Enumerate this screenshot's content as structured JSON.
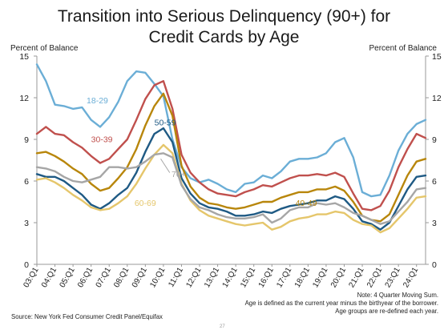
{
  "title_line1": "Transition into Serious Delinquency (90+) for",
  "title_line2": "Credit Cards by Age",
  "ylabel_left": "Percent of Balance",
  "ylabel_right": "Percent of Balance",
  "notes": [
    "Note: 4 Quarter Moving Sum.",
    "Age is defined as the current year minus the birthyear of the borrower.",
    "Age groups are re-defined each year."
  ],
  "source": "Source: New York Fed Consumer Credit Panel/Equifax",
  "page_number": "27",
  "chart_data": {
    "type": "line",
    "title": "Transition into Serious Delinquency (90+) for Credit Cards by Age",
    "ylabel": "Percent of Balance",
    "ylim": [
      0,
      15
    ],
    "yticks": [
      0,
      3,
      6,
      9,
      12,
      15
    ],
    "grid": false,
    "x_start": "03:Q1",
    "x_end": "24:Q2",
    "x_tick_labels": [
      "03:Q1",
      "04:Q1",
      "05:Q1",
      "06:Q1",
      "07:Q1",
      "08:Q1",
      "09:Q1",
      "10:Q1",
      "11:Q1",
      "12:Q1",
      "13:Q1",
      "14:Q1",
      "15:Q1",
      "16:Q1",
      "17:Q1",
      "18:Q1",
      "19:Q1",
      "20:Q1",
      "21:Q1",
      "22:Q1",
      "23:Q1",
      "24:Q1"
    ],
    "series": [
      {
        "name": "18-29",
        "color": "#6baed6",
        "label_pos": [
          2005.75,
          11.6
        ],
        "points": [
          [
            2003.0,
            14.4
          ],
          [
            2003.5,
            13.2
          ],
          [
            2004.0,
            11.5
          ],
          [
            2004.5,
            11.4
          ],
          [
            2005.0,
            11.2
          ],
          [
            2005.5,
            11.3
          ],
          [
            2006.0,
            10.4
          ],
          [
            2006.5,
            9.9
          ],
          [
            2007.0,
            10.6
          ],
          [
            2007.5,
            11.7
          ],
          [
            2008.0,
            13.2
          ],
          [
            2008.5,
            13.9
          ],
          [
            2009.0,
            13.8
          ],
          [
            2009.5,
            13.0
          ],
          [
            2010.0,
            12.1
          ],
          [
            2010.5,
            9.0
          ],
          [
            2011.0,
            7.0
          ],
          [
            2011.5,
            6.2
          ],
          [
            2012.0,
            5.9
          ],
          [
            2012.5,
            6.1
          ],
          [
            2013.0,
            5.8
          ],
          [
            2013.5,
            5.4
          ],
          [
            2014.0,
            5.2
          ],
          [
            2014.5,
            5.8
          ],
          [
            2015.0,
            5.9
          ],
          [
            2015.5,
            6.4
          ],
          [
            2016.0,
            6.2
          ],
          [
            2016.5,
            6.7
          ],
          [
            2017.0,
            7.4
          ],
          [
            2017.5,
            7.6
          ],
          [
            2018.0,
            7.6
          ],
          [
            2018.5,
            7.7
          ],
          [
            2019.0,
            8.0
          ],
          [
            2019.5,
            8.8
          ],
          [
            2020.0,
            9.1
          ],
          [
            2020.5,
            7.7
          ],
          [
            2021.0,
            5.2
          ],
          [
            2021.5,
            4.9
          ],
          [
            2022.0,
            5.0
          ],
          [
            2022.5,
            6.4
          ],
          [
            2023.0,
            8.2
          ],
          [
            2023.5,
            9.4
          ],
          [
            2024.0,
            10.1
          ],
          [
            2024.5,
            10.4
          ]
        ]
      },
      {
        "name": "30-39",
        "color": "#c0504d",
        "label_pos": [
          2006.0,
          8.8
        ],
        "points": [
          [
            2003.0,
            9.4
          ],
          [
            2003.5,
            9.9
          ],
          [
            2004.0,
            9.4
          ],
          [
            2004.5,
            9.3
          ],
          [
            2005.0,
            8.8
          ],
          [
            2005.5,
            8.4
          ],
          [
            2006.0,
            7.8
          ],
          [
            2006.5,
            7.3
          ],
          [
            2007.0,
            7.6
          ],
          [
            2007.5,
            8.3
          ],
          [
            2008.0,
            9.0
          ],
          [
            2008.5,
            10.4
          ],
          [
            2009.0,
            11.9
          ],
          [
            2009.5,
            12.9
          ],
          [
            2010.0,
            13.2
          ],
          [
            2010.5,
            11.2
          ],
          [
            2011.0,
            7.9
          ],
          [
            2011.5,
            6.6
          ],
          [
            2012.0,
            5.9
          ],
          [
            2012.5,
            5.4
          ],
          [
            2013.0,
            5.1
          ],
          [
            2013.5,
            5.0
          ],
          [
            2014.0,
            4.9
          ],
          [
            2014.5,
            5.2
          ],
          [
            2015.0,
            5.4
          ],
          [
            2015.5,
            5.7
          ],
          [
            2016.0,
            5.6
          ],
          [
            2016.5,
            5.9
          ],
          [
            2017.0,
            6.2
          ],
          [
            2017.5,
            6.4
          ],
          [
            2018.0,
            6.4
          ],
          [
            2018.5,
            6.5
          ],
          [
            2019.0,
            6.4
          ],
          [
            2019.5,
            6.6
          ],
          [
            2020.0,
            6.3
          ],
          [
            2020.5,
            5.1
          ],
          [
            2021.0,
            4.0
          ],
          [
            2021.5,
            3.9
          ],
          [
            2022.0,
            4.2
          ],
          [
            2022.5,
            5.3
          ],
          [
            2023.0,
            7.0
          ],
          [
            2023.5,
            8.3
          ],
          [
            2024.0,
            9.4
          ],
          [
            2024.5,
            9.1
          ]
        ]
      },
      {
        "name": "40-49",
        "color": "#b8860b",
        "label_pos": [
          2017.3,
          4.2
        ],
        "points": [
          [
            2003.0,
            8.0
          ],
          [
            2003.5,
            8.1
          ],
          [
            2004.0,
            7.8
          ],
          [
            2004.5,
            7.4
          ],
          [
            2005.0,
            6.9
          ],
          [
            2005.5,
            6.5
          ],
          [
            2006.0,
            5.8
          ],
          [
            2006.5,
            5.3
          ],
          [
            2007.0,
            5.5
          ],
          [
            2007.5,
            6.2
          ],
          [
            2008.0,
            7.0
          ],
          [
            2008.5,
            8.3
          ],
          [
            2009.0,
            10.0
          ],
          [
            2009.5,
            11.4
          ],
          [
            2010.0,
            12.3
          ],
          [
            2010.5,
            10.7
          ],
          [
            2011.0,
            7.1
          ],
          [
            2011.5,
            5.6
          ],
          [
            2012.0,
            4.8
          ],
          [
            2012.5,
            4.4
          ],
          [
            2013.0,
            4.3
          ],
          [
            2013.5,
            4.1
          ],
          [
            2014.0,
            4.0
          ],
          [
            2014.5,
            4.1
          ],
          [
            2015.0,
            4.3
          ],
          [
            2015.5,
            4.5
          ],
          [
            2016.0,
            4.5
          ],
          [
            2016.5,
            4.8
          ],
          [
            2017.0,
            5.0
          ],
          [
            2017.5,
            5.2
          ],
          [
            2018.0,
            5.2
          ],
          [
            2018.5,
            5.4
          ],
          [
            2019.0,
            5.4
          ],
          [
            2019.5,
            5.6
          ],
          [
            2020.0,
            5.3
          ],
          [
            2020.5,
            4.5
          ],
          [
            2021.0,
            3.5
          ],
          [
            2021.5,
            3.2
          ],
          [
            2022.0,
            3.1
          ],
          [
            2022.5,
            3.6
          ],
          [
            2023.0,
            5.0
          ],
          [
            2023.5,
            6.4
          ],
          [
            2024.0,
            7.4
          ],
          [
            2024.5,
            7.6
          ]
        ]
      },
      {
        "name": "50-59",
        "color": "#1f5a84",
        "label_pos": [
          2009.5,
          10.0
        ],
        "points": [
          [
            2003.0,
            6.5
          ],
          [
            2003.5,
            6.3
          ],
          [
            2004.0,
            6.3
          ],
          [
            2004.5,
            6.0
          ],
          [
            2005.0,
            5.5
          ],
          [
            2005.5,
            5.0
          ],
          [
            2006.0,
            4.3
          ],
          [
            2006.5,
            4.0
          ],
          [
            2007.0,
            4.4
          ],
          [
            2007.5,
            5.0
          ],
          [
            2008.0,
            5.5
          ],
          [
            2008.5,
            6.6
          ],
          [
            2009.0,
            8.1
          ],
          [
            2009.5,
            9.4
          ],
          [
            2010.0,
            9.8
          ],
          [
            2010.5,
            8.8
          ],
          [
            2011.0,
            6.2
          ],
          [
            2011.5,
            5.1
          ],
          [
            2012.0,
            4.4
          ],
          [
            2012.5,
            4.1
          ],
          [
            2013.0,
            4.0
          ],
          [
            2013.5,
            3.8
          ],
          [
            2014.0,
            3.5
          ],
          [
            2014.5,
            3.5
          ],
          [
            2015.0,
            3.6
          ],
          [
            2015.5,
            3.8
          ],
          [
            2016.0,
            3.7
          ],
          [
            2016.5,
            4.0
          ],
          [
            2017.0,
            4.2
          ],
          [
            2017.5,
            4.3
          ],
          [
            2018.0,
            4.4
          ],
          [
            2018.5,
            4.6
          ],
          [
            2019.0,
            4.6
          ],
          [
            2019.5,
            4.9
          ],
          [
            2020.0,
            4.7
          ],
          [
            2020.5,
            4.0
          ],
          [
            2021.0,
            3.1
          ],
          [
            2021.5,
            2.9
          ],
          [
            2022.0,
            2.5
          ],
          [
            2022.5,
            3.0
          ],
          [
            2023.0,
            4.2
          ],
          [
            2023.5,
            5.4
          ],
          [
            2024.0,
            6.3
          ],
          [
            2024.5,
            6.4
          ]
        ]
      },
      {
        "name": "60-69",
        "color": "#e5c66b",
        "label_pos": [
          2008.4,
          4.2
        ],
        "points": [
          [
            2003.0,
            6.1
          ],
          [
            2003.5,
            6.2
          ],
          [
            2004.0,
            5.9
          ],
          [
            2004.5,
            5.5
          ],
          [
            2005.0,
            5.0
          ],
          [
            2005.5,
            4.6
          ],
          [
            2006.0,
            4.1
          ],
          [
            2006.5,
            3.9
          ],
          [
            2007.0,
            4.0
          ],
          [
            2007.5,
            4.4
          ],
          [
            2008.0,
            4.9
          ],
          [
            2008.5,
            5.8
          ],
          [
            2009.0,
            6.9
          ],
          [
            2009.5,
            7.9
          ],
          [
            2010.0,
            8.6
          ],
          [
            2010.5,
            8.0
          ],
          [
            2011.0,
            5.8
          ],
          [
            2011.5,
            4.6
          ],
          [
            2012.0,
            3.9
          ],
          [
            2012.5,
            3.5
          ],
          [
            2013.0,
            3.3
          ],
          [
            2013.5,
            3.1
          ],
          [
            2014.0,
            2.9
          ],
          [
            2014.5,
            2.8
          ],
          [
            2015.0,
            2.9
          ],
          [
            2015.5,
            3.0
          ],
          [
            2016.0,
            2.5
          ],
          [
            2016.5,
            2.7
          ],
          [
            2017.0,
            3.1
          ],
          [
            2017.5,
            3.3
          ],
          [
            2018.0,
            3.4
          ],
          [
            2018.5,
            3.6
          ],
          [
            2019.0,
            3.6
          ],
          [
            2019.5,
            3.8
          ],
          [
            2020.0,
            3.7
          ],
          [
            2020.5,
            3.2
          ],
          [
            2021.0,
            2.9
          ],
          [
            2021.5,
            2.8
          ],
          [
            2022.0,
            2.3
          ],
          [
            2022.5,
            2.6
          ],
          [
            2023.0,
            3.3
          ],
          [
            2023.5,
            4.0
          ],
          [
            2024.0,
            4.8
          ],
          [
            2024.5,
            4.9
          ]
        ]
      },
      {
        "name": "70+",
        "color": "#a6a6a6",
        "label_pos": [
          2010.45,
          6.3
        ],
        "points": [
          [
            2003.0,
            7.0
          ],
          [
            2003.5,
            6.9
          ],
          [
            2004.0,
            6.7
          ],
          [
            2004.5,
            6.3
          ],
          [
            2005.0,
            6.0
          ],
          [
            2005.5,
            5.9
          ],
          [
            2006.0,
            6.1
          ],
          [
            2006.5,
            6.3
          ],
          [
            2007.0,
            7.0
          ],
          [
            2007.5,
            7.0
          ],
          [
            2008.0,
            6.9
          ],
          [
            2008.5,
            7.0
          ],
          [
            2009.0,
            7.4
          ],
          [
            2009.5,
            7.9
          ],
          [
            2010.0,
            8.0
          ],
          [
            2010.5,
            7.7
          ],
          [
            2011.0,
            5.7
          ],
          [
            2011.5,
            4.7
          ],
          [
            2012.0,
            4.1
          ],
          [
            2012.5,
            3.9
          ],
          [
            2013.0,
            3.6
          ],
          [
            2013.5,
            3.4
          ],
          [
            2014.0,
            3.3
          ],
          [
            2014.5,
            3.3
          ],
          [
            2015.0,
            3.4
          ],
          [
            2015.5,
            3.6
          ],
          [
            2016.0,
            3.0
          ],
          [
            2016.5,
            3.3
          ],
          [
            2017.0,
            3.9
          ],
          [
            2017.5,
            4.1
          ],
          [
            2018.0,
            4.1
          ],
          [
            2018.5,
            4.4
          ],
          [
            2019.0,
            4.3
          ],
          [
            2019.5,
            4.4
          ],
          [
            2020.0,
            4.1
          ],
          [
            2020.5,
            3.7
          ],
          [
            2021.0,
            3.5
          ],
          [
            2021.5,
            3.2
          ],
          [
            2022.0,
            2.9
          ],
          [
            2022.5,
            3.1
          ],
          [
            2023.0,
            3.8
          ],
          [
            2023.5,
            4.5
          ],
          [
            2024.0,
            5.4
          ],
          [
            2024.5,
            5.5
          ]
        ]
      }
    ]
  }
}
